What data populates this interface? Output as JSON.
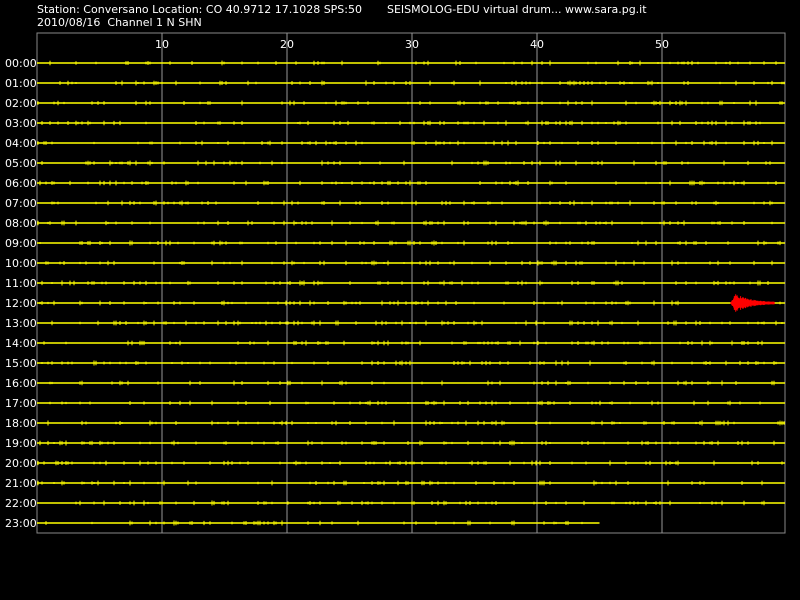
{
  "header": {
    "station_line": "Station: Conversano Location: CO 40.9712 17.1028 SPS:50",
    "date_line": "2010/08/16  Channel 1 N SHN",
    "software_line": "SEISMOLOG-EDU virtual drum... www.sara.pg.it"
  },
  "colors": {
    "background": "#000000",
    "trace": "#ffff00",
    "event": "#ff0000",
    "grid": "#ffffff",
    "text": "#ffffff"
  },
  "chart_data": {
    "type": "line",
    "title": "SEISMOLOG-EDU virtual drum",
    "x_tick_labels": [
      "10",
      "20",
      "30",
      "40",
      "50"
    ],
    "x_ticks": [
      10,
      20,
      30,
      40,
      50
    ],
    "xlim": [
      0,
      60
    ],
    "grid": "vertical",
    "rows": [
      "00:00",
      "01:00",
      "02:00",
      "03:00",
      "04:00",
      "05:00",
      "06:00",
      "07:00",
      "08:00",
      "09:00",
      "10:00",
      "11:00",
      "12:00",
      "13:00",
      "14:00",
      "15:00",
      "16:00",
      "17:00",
      "18:00",
      "19:00",
      "20:00",
      "21:00",
      "22:00",
      "23:00"
    ],
    "last_row_end_minute": 45,
    "event": {
      "row": "12:00",
      "start_minute": 55.5,
      "end_minute": 59
    }
  }
}
